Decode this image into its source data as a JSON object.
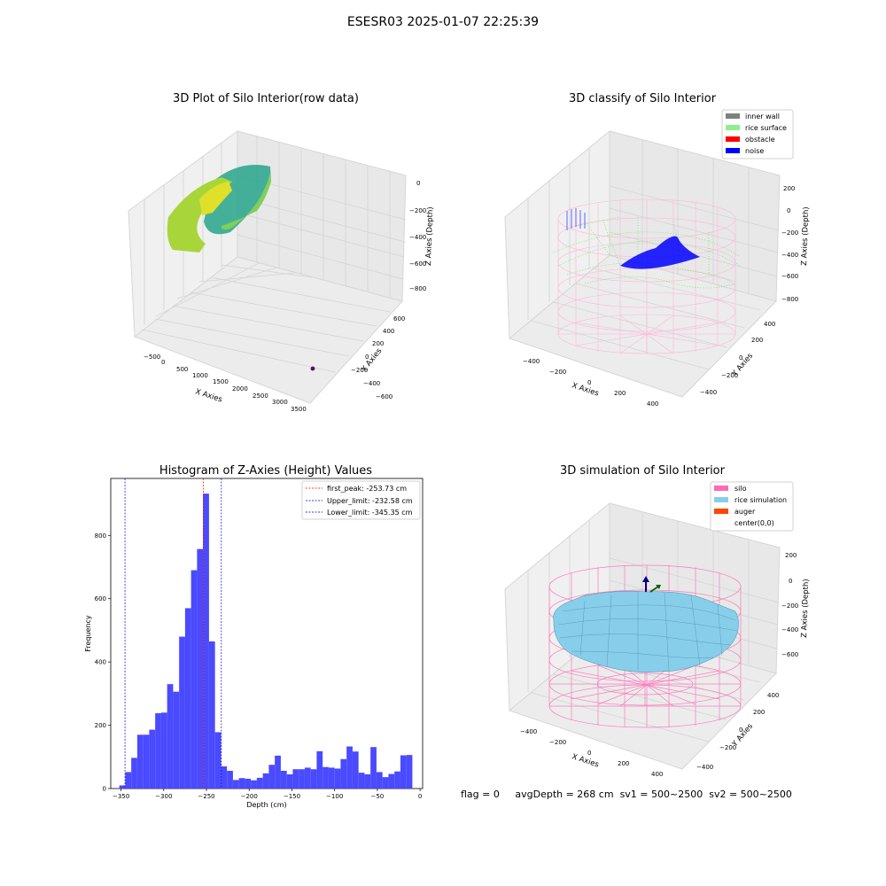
{
  "suptitle": "ESESR03 2025-01-07 22:25:39",
  "footer": {
    "flag": "flag = 0",
    "avg_depth": "avgDepth = 268 cm",
    "sv1": "sv1 = 500~2500",
    "sv2": "sv2 = 500~2500"
  },
  "chart_data": [
    {
      "type": "scatter",
      "title": "3D Plot of Silo Interior(row data)",
      "xlabel": "X Axies",
      "ylabel": "Y Axies",
      "zlabel": "Z Axies (Depth)",
      "x_ticks": [
        "−500",
        "0",
        "500",
        "1000",
        "1500",
        "2000",
        "2500",
        "3000",
        "3500"
      ],
      "y_ticks": [
        "−600",
        "−400",
        "−200",
        "0",
        "200",
        "400",
        "600"
      ],
      "z_ticks": [
        "−800",
        "−600",
        "−400",
        "−200",
        "0"
      ],
      "colors": {
        "cloud_dark": "#26a08a",
        "cloud_light": "#b5de2b",
        "cloud_yellow": "#e6e419",
        "outlier": "#5b0a6b"
      },
      "outlier": {
        "x": 3300,
        "y": -300,
        "z": -800
      }
    },
    {
      "type": "scatter",
      "title": "3D classify of Silo Interior",
      "xlabel": "X Axies",
      "ylabel": "Y Axies",
      "zlabel": "Z Axies (Depth)",
      "x_ticks": [
        "−400",
        "−200",
        "0",
        "200",
        "400"
      ],
      "y_ticks": [
        "−400",
        "−200",
        "0",
        "200",
        "400"
      ],
      "z_ticks": [
        "−800",
        "−600",
        "−400",
        "−200",
        "0",
        "200"
      ],
      "legend_position": "top-right",
      "legend": [
        {
          "label": "inner wall",
          "color": "#808080"
        },
        {
          "label": "rice surface",
          "color": "#90ee90"
        },
        {
          "label": "obstacle",
          "color": "#ff0000"
        },
        {
          "label": "noise",
          "color": "#0000ff"
        }
      ]
    },
    {
      "type": "bar",
      "title": "Histogram of Z-Axies (Height) Values",
      "xlabel": "Depth (cm)",
      "ylabel": "Frequency",
      "xlim": [
        -362,
        3
      ],
      "ylim": [
        0,
        980
      ],
      "bin_width": 7,
      "bin_start": -352,
      "values": [
        10,
        52,
        97,
        170,
        170,
        186,
        238,
        240,
        330,
        306,
        480,
        570,
        690,
        757,
        932,
        465,
        178,
        70,
        56,
        27,
        33,
        31,
        26,
        34,
        48,
        75,
        104,
        56,
        45,
        61,
        61,
        66,
        61,
        118,
        68,
        66,
        63,
        93,
        133,
        117,
        50,
        45,
        131,
        52,
        36,
        46,
        54,
        105,
        106
      ],
      "x_ticks": [
        -350,
        -300,
        -250,
        -200,
        -150,
        -100,
        -50,
        0
      ],
      "x_tick_labels": [
        "−350",
        "−300",
        "−250",
        "−200",
        "−150",
        "−100",
        "−50",
        "0"
      ],
      "y_ticks": [
        0,
        200,
        400,
        600,
        800
      ],
      "y_tick_labels": [
        "0",
        "200",
        "400",
        "600",
        "800"
      ],
      "bar_color": "#4a4aff",
      "lines": [
        {
          "label": "first_peak: -253.73 cm",
          "value": -253.73,
          "color": "#ff0000"
        },
        {
          "label": "Upper_limit: -232.58 cm",
          "value": -232.58,
          "color": "#0000cc"
        },
        {
          "label": "Lower_limit: -345.35 cm",
          "value": -345.35,
          "color": "#0000cc"
        }
      ],
      "legend_position": "top-right"
    },
    {
      "type": "area",
      "title": "3D simulation of Silo Interior",
      "xlabel": "X Axies",
      "ylabel": "Y Axies",
      "zlabel": "Z Axies (Depth)",
      "x_ticks": [
        "−400",
        "−200",
        "0",
        "200",
        "400"
      ],
      "y_ticks": [
        "−400",
        "−200",
        "0",
        "200",
        "400"
      ],
      "z_ticks": [
        "−600",
        "−400",
        "−200",
        "0",
        "200"
      ],
      "legend_position": "top-right",
      "legend": [
        {
          "label": "silo",
          "color": "#ff69b4"
        },
        {
          "label": "rice simulation",
          "color": "#87ceeb"
        },
        {
          "label": "auger",
          "color": "#ff4500"
        },
        {
          "label": "center(0,0)",
          "color": ""
        }
      ]
    }
  ]
}
